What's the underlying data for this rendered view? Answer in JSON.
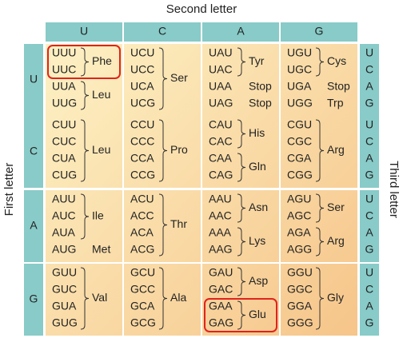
{
  "title": "Second letter",
  "first_letter_label": "First letter",
  "third_letter_label": "Third letter",
  "columns": [
    "U",
    "C",
    "A",
    "G"
  ],
  "rows": [
    {
      "letter": "U",
      "third": [
        "U",
        "C",
        "A",
        "G"
      ],
      "cells": [
        {
          "groups": [
            {
              "codons": [
                "UUU",
                "UUC"
              ],
              "amino": "Phe",
              "highlighted": true
            },
            {
              "codons": [
                "UUA",
                "UUG"
              ],
              "amino": "Leu"
            }
          ]
        },
        {
          "groups": [
            {
              "codons": [
                "UCU",
                "UCC",
                "UCA",
                "UCG"
              ],
              "amino": "Ser"
            }
          ]
        },
        {
          "groups": [
            {
              "codons": [
                "UAU",
                "UAC"
              ],
              "amino": "Tyr"
            },
            {
              "codons": [
                "UAA"
              ],
              "amino": "Stop"
            },
            {
              "codons": [
                "UAG"
              ],
              "amino": "Stop"
            }
          ]
        },
        {
          "groups": [
            {
              "codons": [
                "UGU",
                "UGC"
              ],
              "amino": "Cys"
            },
            {
              "codons": [
                "UGA"
              ],
              "amino": "Stop"
            },
            {
              "codons": [
                "UGG"
              ],
              "amino": "Trp"
            }
          ]
        }
      ]
    },
    {
      "letter": "C",
      "third": [
        "U",
        "C",
        "A",
        "G"
      ],
      "cells": [
        {
          "groups": [
            {
              "codons": [
                "CUU",
                "CUC",
                "CUA",
                "CUG"
              ],
              "amino": "Leu"
            }
          ]
        },
        {
          "groups": [
            {
              "codons": [
                "CCU",
                "CCC",
                "CCA",
                "CCG"
              ],
              "amino": "Pro"
            }
          ]
        },
        {
          "groups": [
            {
              "codons": [
                "CAU",
                "CAC"
              ],
              "amino": "His"
            },
            {
              "codons": [
                "CAA",
                "CAG"
              ],
              "amino": "Gln"
            }
          ]
        },
        {
          "groups": [
            {
              "codons": [
                "CGU",
                "CGC",
                "CGA",
                "CGG"
              ],
              "amino": "Arg"
            }
          ]
        }
      ]
    },
    {
      "letter": "A",
      "third": [
        "U",
        "C",
        "A",
        "G"
      ],
      "cells": [
        {
          "groups": [
            {
              "codons": [
                "AUU",
                "AUC",
                "AUA"
              ],
              "amino": "Ile"
            },
            {
              "codons": [
                "AUG"
              ],
              "amino": "Met"
            }
          ]
        },
        {
          "groups": [
            {
              "codons": [
                "ACU",
                "ACC",
                "ACA",
                "ACG"
              ],
              "amino": "Thr"
            }
          ]
        },
        {
          "groups": [
            {
              "codons": [
                "AAU",
                "AAC"
              ],
              "amino": "Asn"
            },
            {
              "codons": [
                "AAA",
                "AAG"
              ],
              "amino": "Lys"
            }
          ]
        },
        {
          "groups": [
            {
              "codons": [
                "AGU",
                "AGC"
              ],
              "amino": "Ser"
            },
            {
              "codons": [
                "AGA",
                "AGG"
              ],
              "amino": "Arg"
            }
          ]
        }
      ]
    },
    {
      "letter": "G",
      "third": [
        "U",
        "C",
        "A",
        "G"
      ],
      "cells": [
        {
          "groups": [
            {
              "codons": [
                "GUU",
                "GUC",
                "GUA",
                "GUG"
              ],
              "amino": "Val"
            }
          ]
        },
        {
          "groups": [
            {
              "codons": [
                "GCU",
                "GCC",
                "GCA",
                "GCG"
              ],
              "amino": "Ala"
            }
          ]
        },
        {
          "groups": [
            {
              "codons": [
                "GAU",
                "GAC"
              ],
              "amino": "Asp"
            },
            {
              "codons": [
                "GAA",
                "GAG"
              ],
              "amino": "Glu",
              "highlighted": true
            }
          ]
        },
        {
          "groups": [
            {
              "codons": [
                "GGU",
                "GGC",
                "GGA",
                "GGG"
              ],
              "amino": "Gly"
            }
          ]
        }
      ]
    }
  ]
}
